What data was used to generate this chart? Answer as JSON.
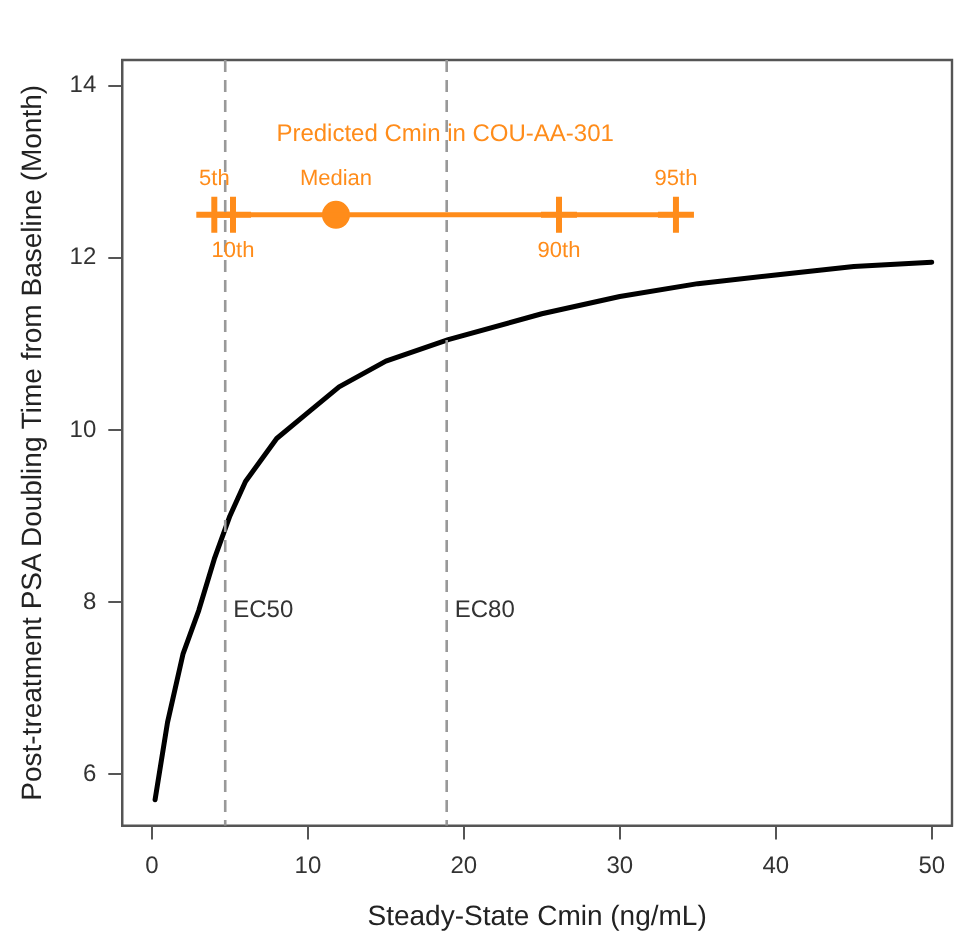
{
  "chart_data": {
    "type": "line",
    "xlabel": "Steady-State Cmin (ng/mL)",
    "ylabel": "Post-treatment PSA Doubling Time from Baseline (Month)",
    "xlim": [
      -1.9,
      51.3
    ],
    "xticks": [
      0,
      10,
      20,
      30,
      40,
      50
    ],
    "ylim": [
      5.4,
      14.3
    ],
    "yticks": [
      6,
      8,
      10,
      12,
      14
    ],
    "grid": false,
    "legend": false,
    "series": [
      {
        "color": "#000000",
        "marker": "none",
        "x": [
          0.2,
          1,
          2,
          3,
          4,
          5,
          6,
          8,
          10,
          12,
          15,
          19,
          25,
          30,
          35,
          40,
          45,
          50
        ],
        "values": [
          5.7,
          6.6,
          7.4,
          7.9,
          8.5,
          9.0,
          9.4,
          9.9,
          10.2,
          10.5,
          10.8,
          11.05,
          11.35,
          11.55,
          11.7,
          11.8,
          11.9,
          11.95
        ]
      },
      {
        "type": "line",
        "name": "Predicted Cmin in COU-AA-301",
        "color": "#ff8c1a",
        "marker": "cross",
        "x": [
          4.0,
          5.2,
          26.1,
          33.6
        ],
        "values": [
          12.5,
          12.5,
          12.5,
          12.5
        ]
      },
      {
        "type": "scatter",
        "color": "#ff8c1a",
        "marker": "circle",
        "x": [
          11.8
        ],
        "values": [
          12.5
        ]
      }
    ],
    "ref_lines": [
      {
        "axis": "x",
        "value": 4.7,
        "label": "EC50",
        "color": "#999999",
        "line_style": "dashed"
      },
      {
        "axis": "x",
        "value": 18.9,
        "label": "EC80",
        "color": "#999999",
        "line_style": "dashed"
      }
    ],
    "annotations": [
      {
        "text": "5th",
        "x": 4.0,
        "y": 12.5
      },
      {
        "text": "10th",
        "x": 5.2,
        "y": 12.5
      },
      {
        "text": "Median",
        "x": 11.8,
        "y": 12.5
      },
      {
        "text": "90th",
        "x": 26.1,
        "y": 12.5
      },
      {
        "text": "95th",
        "x": 33.6,
        "y": 12.5
      }
    ]
  }
}
